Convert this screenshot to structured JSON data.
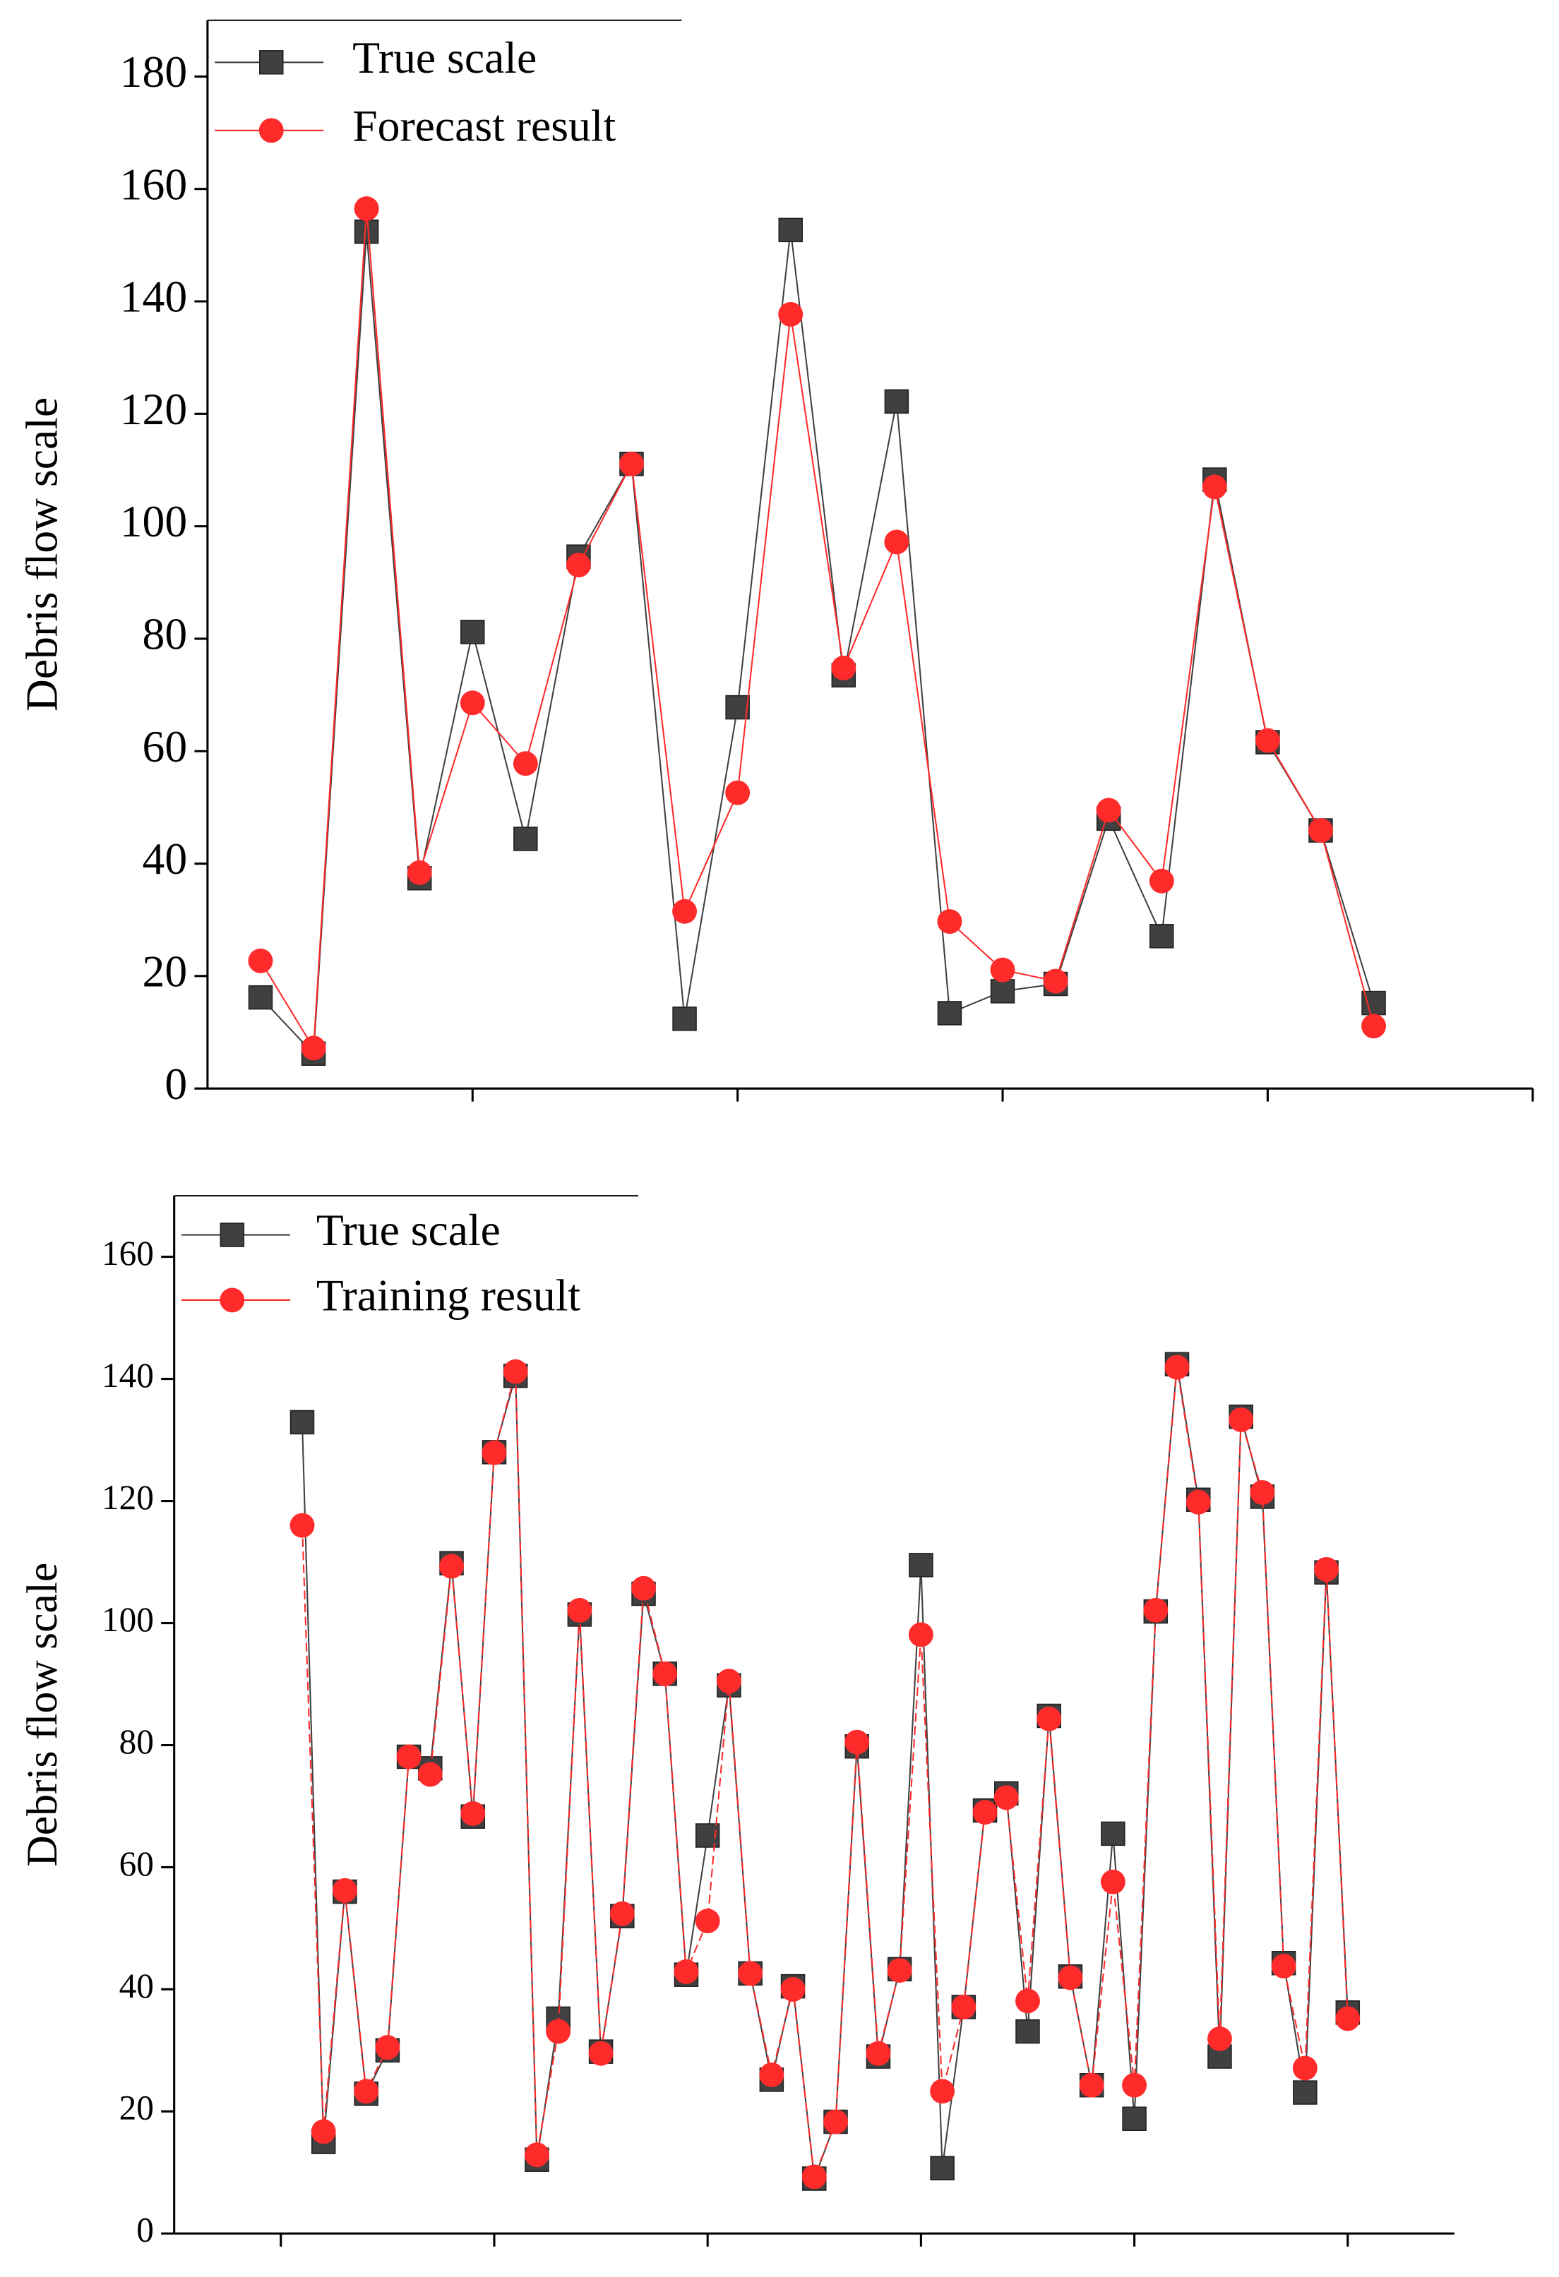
{
  "chart_data": [
    {
      "type": "line",
      "ylabel": "Debris flow scale",
      "x": [
        1,
        2,
        3,
        4,
        5,
        6,
        7,
        8,
        9,
        10,
        11,
        12,
        13,
        14,
        15,
        16,
        17,
        18,
        19,
        20,
        21,
        22
      ],
      "xlim": [
        0,
        25
      ],
      "xticks": [
        5,
        10,
        15,
        20,
        25
      ],
      "ylim": [
        0,
        190
      ],
      "yticks": [
        0,
        20,
        40,
        60,
        80,
        100,
        120,
        140,
        160,
        180
      ],
      "legend": "upper left",
      "series": [
        {
          "name": "True scale",
          "color": "#404040",
          "marker": "square",
          "values": [
            16.2,
            6.2,
            152.4,
            37.4,
            81.2,
            44.4,
            94.6,
            111.1,
            12.4,
            67.8,
            152.7,
            73.5,
            122.2,
            13.4,
            17.3,
            18.6,
            48,
            27.1,
            108.3,
            61.6,
            45.9,
            15.2
          ]
        },
        {
          "name": "Forecast result",
          "color": "#ff2a2a",
          "marker": "circle",
          "values": [
            22.7,
            7.2,
            156.5,
            38.4,
            68.6,
            57.8,
            93.1,
            111.1,
            31.5,
            52.6,
            137.7,
            74.8,
            97.2,
            29.7,
            21.1,
            19.1,
            49.5,
            36.9,
            107,
            61.9,
            45.9,
            11.1
          ]
        }
      ]
    },
    {
      "type": "line",
      "ylabel": "Debris flow scale",
      "x": [
        1,
        2,
        3,
        4,
        5,
        6,
        7,
        8,
        9,
        10,
        11,
        12,
        13,
        14,
        15,
        16,
        17,
        18,
        19,
        20,
        21,
        22,
        23,
        24,
        25,
        26,
        27,
        28,
        29,
        30,
        31,
        32,
        33,
        34,
        35,
        36,
        37,
        38,
        39,
        40,
        41,
        42,
        43,
        44,
        45,
        46,
        47,
        48,
        49,
        50
      ],
      "xlim": [
        -5,
        55
      ],
      "xticks": [
        0,
        10,
        20,
        30,
        40,
        50
      ],
      "ylim": [
        0,
        170
      ],
      "yticks": [
        0,
        20,
        40,
        60,
        80,
        100,
        120,
        140,
        160
      ],
      "legend": "upper left",
      "series": [
        {
          "name": "True scale",
          "color": "#404040",
          "marker": "square",
          "values": [
            132.9,
            15,
            56,
            22.9,
            30,
            78.1,
            76.2,
            109.8,
            68.3,
            128,
            140.5,
            12.1,
            35.2,
            101.4,
            29.8,
            52,
            104.8,
            91.7,
            42.4,
            65.2,
            89.8,
            42.6,
            25.2,
            40.5,
            9,
            18.3,
            79.8,
            29,
            43.3,
            109.5,
            10.7,
            37.1,
            69.3,
            72.1,
            33.1,
            84.8,
            42.1,
            24.3,
            65.5,
            18.8,
            101.9,
            142.4,
            120.2,
            29,
            133.8,
            120.7,
            44.3,
            23.1,
            108.3,
            36.2
          ]
        },
        {
          "name": "Training result",
          "color": "#ff2a2a",
          "marker": "circle",
          "values": [
            116,
            16.7,
            56.2,
            23.3,
            30.5,
            78.1,
            75.2,
            109.3,
            68.8,
            127.9,
            141.2,
            12.9,
            33.1,
            102.1,
            29.5,
            52.4,
            105.7,
            91.7,
            42.9,
            51.2,
            90.5,
            42.6,
            26,
            40,
            9.3,
            18.3,
            80.5,
            29.5,
            43.1,
            98.1,
            23.3,
            37.1,
            69,
            71.4,
            38.1,
            84.3,
            41.9,
            24.3,
            57.6,
            24.3,
            102.1,
            141.9,
            119.8,
            31.9,
            133.3,
            121.4,
            43.8,
            27.1,
            108.8,
            35.2
          ]
        }
      ]
    }
  ]
}
